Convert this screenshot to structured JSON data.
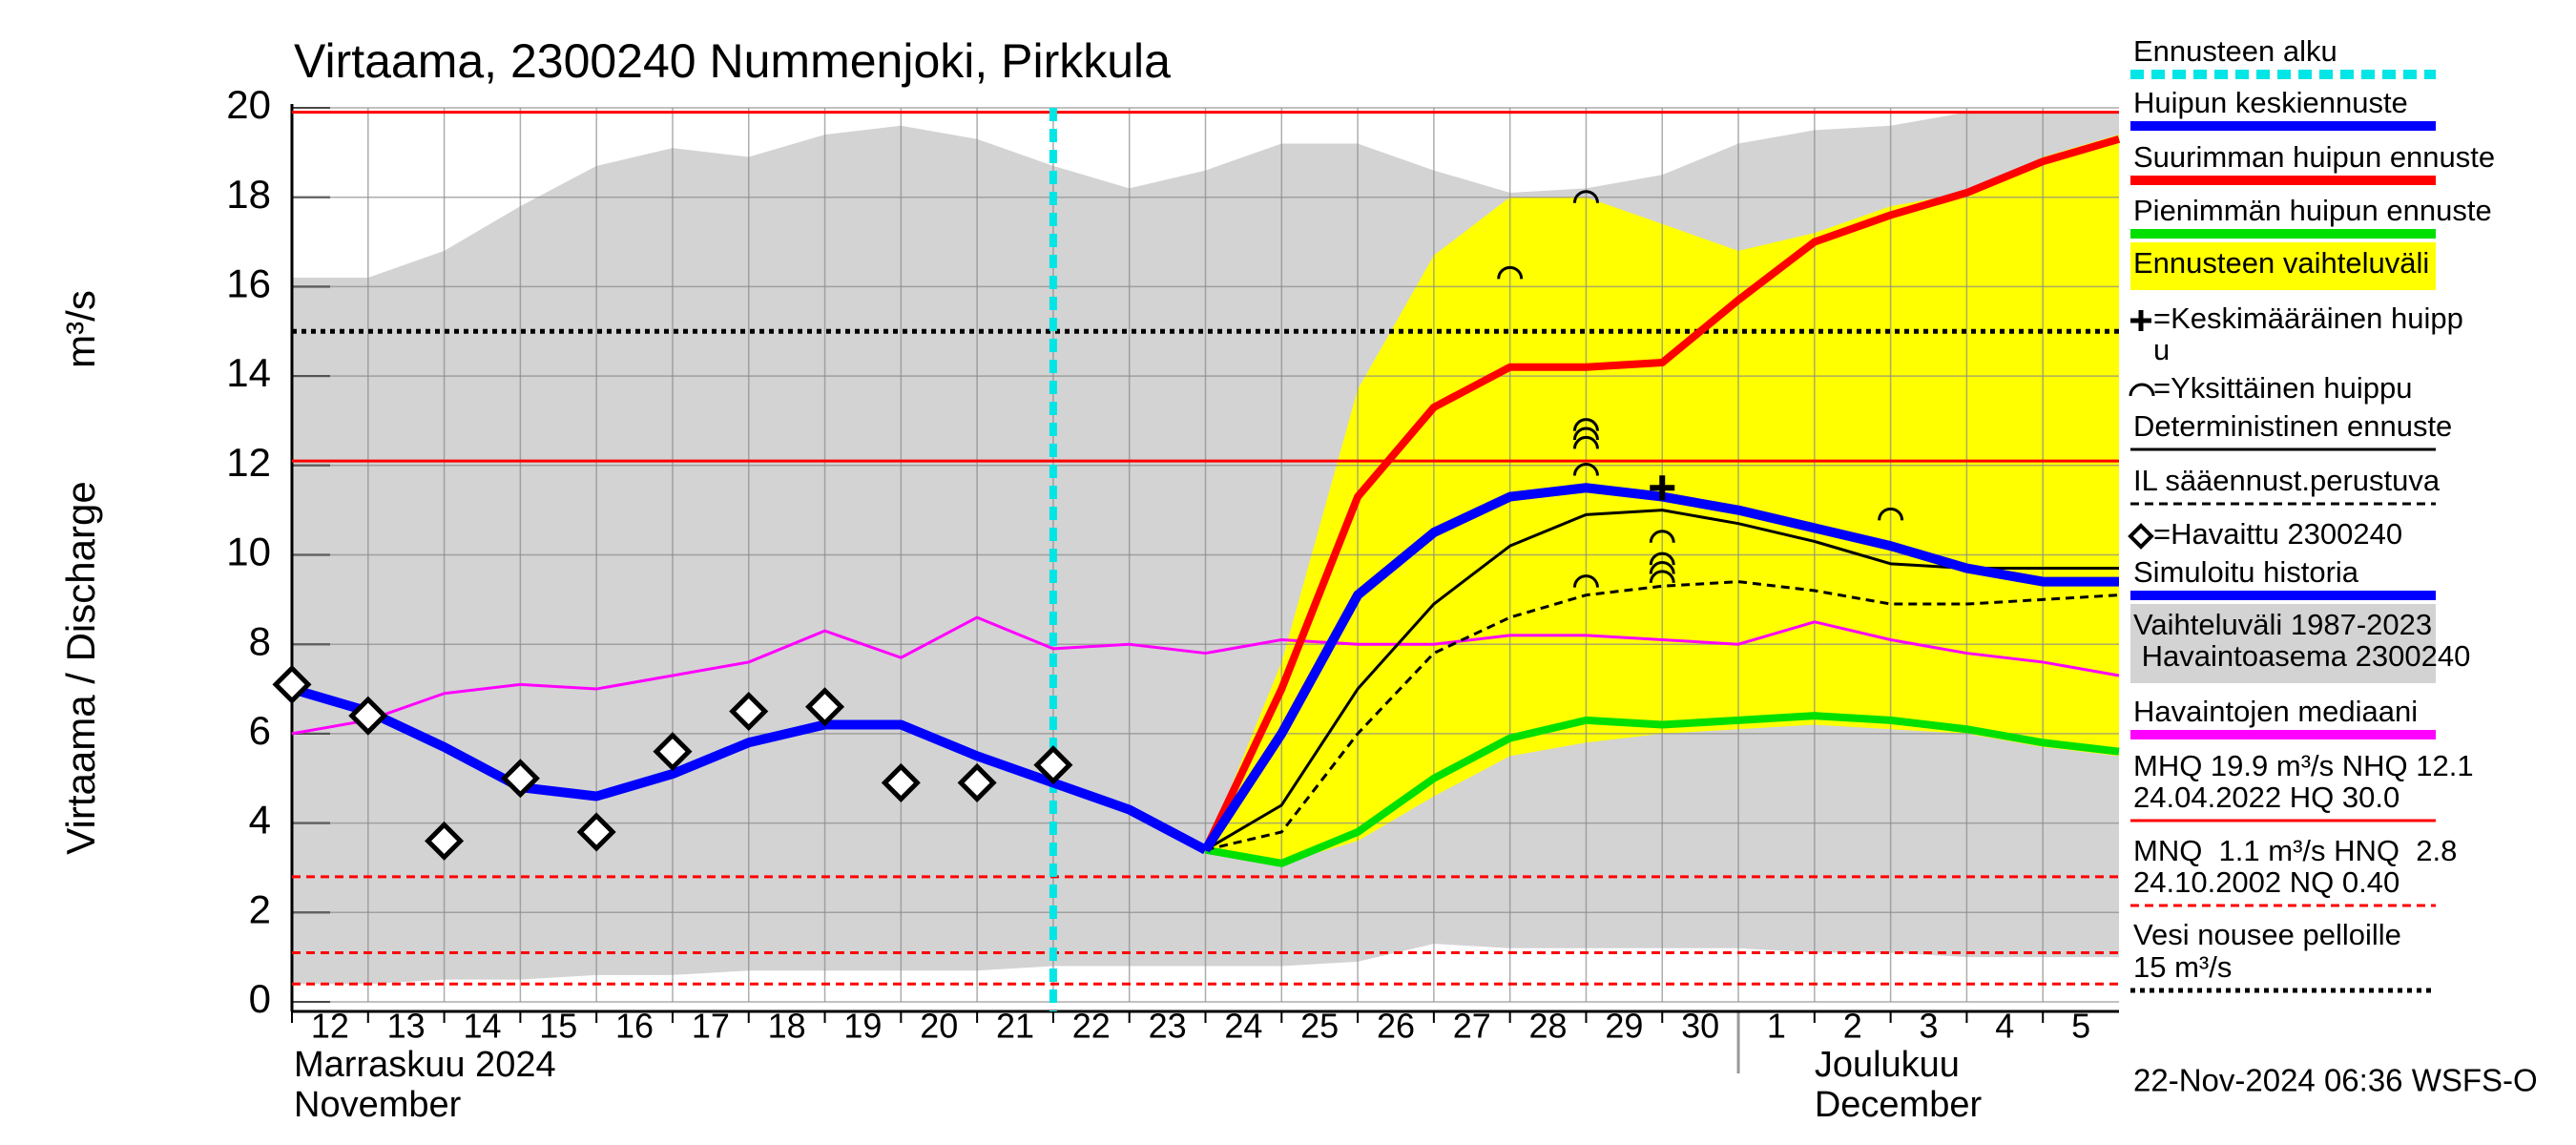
{
  "chart_data": {
    "type": "line",
    "title": "Virtaama, 2300240 Nummenjoki, Pirkkula",
    "y_label": "Virtaama / Discharge",
    "y_unit": "m³/s",
    "footer": "22-Nov-2024 06:36 WSFS-O",
    "categories": [
      "12",
      "13",
      "14",
      "15",
      "16",
      "17",
      "18",
      "19",
      "20",
      "21",
      "22",
      "23",
      "24",
      "25",
      "26",
      "27",
      "28",
      "29",
      "30",
      "1",
      "2",
      "3",
      "4",
      "5",
      null
    ],
    "months": [
      {
        "start": "12",
        "lines": [
          "Marraskuu 2024",
          "November"
        ]
      },
      {
        "start": "1",
        "lines": [
          "Joulukuu",
          "December"
        ]
      }
    ],
    "ylim": [
      0,
      20
    ],
    "yticks": [
      0,
      2,
      4,
      6,
      8,
      10,
      12,
      14,
      16,
      18,
      20
    ],
    "grid": true,
    "forecast_start": "22",
    "forecast_start_color": "#00e5e5",
    "bands": [
      {
        "color": "#d3d3d3",
        "upper": [
          16.2,
          16.2,
          16.8,
          17.8,
          18.7,
          19.1,
          18.9,
          19.4,
          19.6,
          19.3,
          18.7,
          18.2,
          18.6,
          19.2,
          19.2,
          18.6,
          18.1,
          18.2,
          18.5,
          19.2,
          19.5,
          19.6,
          19.9,
          19.9,
          19.9
        ],
        "lower": [
          0.4,
          0.4,
          0.5,
          0.5,
          0.6,
          0.6,
          0.7,
          0.7,
          0.7,
          0.7,
          0.8,
          0.8,
          0.8,
          0.8,
          0.9,
          1.3,
          1.2,
          1.2,
          1.2,
          1.2,
          1.1,
          1.1,
          1.0,
          1.0,
          1.0
        ]
      },
      {
        "color": "#ffff00",
        "upper": [
          null,
          null,
          null,
          null,
          null,
          null,
          null,
          null,
          null,
          null,
          null,
          null,
          3.4,
          7.6,
          13.7,
          16.7,
          18.0,
          18.0,
          17.4,
          16.8,
          17.2,
          17.8,
          18.1,
          18.9,
          19.4
        ],
        "lower": [
          null,
          null,
          null,
          null,
          null,
          null,
          null,
          null,
          null,
          null,
          null,
          null,
          3.4,
          3.1,
          3.6,
          4.6,
          5.5,
          5.8,
          6.0,
          6.1,
          6.2,
          6.1,
          6.0,
          5.7,
          5.5
        ]
      }
    ],
    "reference_lines": [
      {
        "value": 19.9,
        "color": "#ff0000",
        "dash": "solid"
      },
      {
        "value": 12.1,
        "color": "#ff0000",
        "dash": "solid"
      },
      {
        "value": 15,
        "color": "#000000",
        "dash": "dotted"
      },
      {
        "value": 2.8,
        "color": "#ff0000",
        "dash": "dashed"
      },
      {
        "value": 1.1,
        "color": "#ff0000",
        "dash": "dashed"
      },
      {
        "value": 0.4,
        "color": "#ff0000",
        "dash": "dashed"
      }
    ],
    "series": [
      {
        "color": "#ff00ff",
        "width": 3,
        "dash": "solid",
        "values": [
          6.0,
          6.3,
          6.9,
          7.1,
          7.0,
          7.3,
          7.6,
          8.3,
          7.7,
          8.6,
          7.9,
          8.0,
          7.8,
          8.1,
          8.0,
          8.0,
          8.2,
          8.2,
          8.1,
          8.0,
          8.5,
          8.1,
          7.8,
          7.6,
          7.3
        ]
      },
      {
        "color": "#ff0000",
        "width": 8,
        "dash": "solid",
        "values": [
          null,
          null,
          null,
          null,
          null,
          null,
          null,
          null,
          null,
          null,
          null,
          null,
          3.4,
          7.0,
          11.3,
          13.3,
          14.2,
          14.2,
          14.3,
          15.7,
          17.0,
          17.6,
          18.1,
          18.8,
          19.3
        ]
      },
      {
        "color": "#00e000",
        "width": 8,
        "dash": "solid",
        "values": [
          null,
          null,
          null,
          null,
          null,
          null,
          null,
          null,
          null,
          null,
          null,
          null,
          3.4,
          3.1,
          3.8,
          5.0,
          5.9,
          6.3,
          6.2,
          6.3,
          6.4,
          6.3,
          6.1,
          5.8,
          5.6
        ]
      },
      {
        "color": "#000000",
        "width": 3,
        "dash": "dashed",
        "values": [
          null,
          null,
          null,
          null,
          null,
          null,
          null,
          null,
          null,
          null,
          null,
          null,
          3.4,
          3.8,
          6.0,
          7.8,
          8.6,
          9.1,
          9.3,
          9.4,
          9.2,
          8.9,
          8.9,
          9.0,
          9.1
        ]
      },
      {
        "color": "#000000",
        "width": 3,
        "dash": "solid",
        "values": [
          null,
          null,
          null,
          null,
          null,
          null,
          null,
          null,
          null,
          null,
          null,
          null,
          3.4,
          4.4,
          7.0,
          8.9,
          10.2,
          10.9,
          11.0,
          10.7,
          10.3,
          9.8,
          9.7,
          9.7,
          9.7
        ]
      },
      {
        "color": "#0000ff",
        "width": 10,
        "dash": "solid",
        "values": [
          7.0,
          6.5,
          5.7,
          4.8,
          4.6,
          5.1,
          5.8,
          6.2,
          6.2,
          5.5,
          4.9,
          4.3,
          3.4,
          null,
          null,
          null,
          null,
          null,
          null,
          null,
          null,
          null,
          null,
          null,
          null
        ]
      },
      {
        "color": "#0000ff",
        "width": 10,
        "dash": "solid",
        "values": [
          null,
          null,
          null,
          null,
          null,
          null,
          null,
          null,
          null,
          null,
          null,
          null,
          3.4,
          6.0,
          9.1,
          10.5,
          11.3,
          11.5,
          11.3,
          11.0,
          10.6,
          10.2,
          9.7,
          9.4,
          9.4
        ]
      }
    ],
    "observed": {
      "color": "#000000",
      "values": [
        7.1,
        6.4,
        3.6,
        5.0,
        3.8,
        5.6,
        6.5,
        6.6,
        4.9,
        4.9,
        5.3,
        null,
        null,
        null,
        null,
        null,
        null,
        null,
        null,
        null,
        null,
        null,
        null,
        null,
        null
      ]
    },
    "individual_peaks": [
      {
        "day": "28",
        "value": 16.3
      },
      {
        "day": "29",
        "value": 18.0
      },
      {
        "day": "29",
        "value": 12.9
      },
      {
        "day": "29",
        "value": 12.7
      },
      {
        "day": "29",
        "value": 12.5
      },
      {
        "day": "29",
        "value": 11.9
      },
      {
        "day": "29",
        "value": 9.4
      },
      {
        "day": "30",
        "value": 10.4
      },
      {
        "day": "30",
        "value": 9.9
      },
      {
        "day": "30",
        "value": 9.7
      },
      {
        "day": "30",
        "value": 9.5
      },
      {
        "day": "3",
        "value": 10.9
      }
    ],
    "mean_peak": {
      "day": "30",
      "value": 11.5
    },
    "legend": [
      {
        "lines": [
          "Ennusteen alku"
        ],
        "symbol": "line",
        "color": "#00e5e5",
        "dash": "dashed"
      },
      {
        "lines": [
          "Huipun keskiennuste"
        ],
        "symbol": "line",
        "color": "#0000ff",
        "dash": "solid"
      },
      {
        "lines": [
          "Suurimman huipun ennuste"
        ],
        "symbol": "line",
        "color": "#ff0000",
        "dash": "solid"
      },
      {
        "lines": [
          "Pienimmän huipun ennuste"
        ],
        "symbol": "line",
        "color": "#00e000",
        "dash": "solid"
      },
      {
        "lines": [
          "Ennusteen vaihteluväli"
        ],
        "symbol": "block",
        "color": "#ffff00"
      },
      {
        "lines": [
          "=Keskimääräinen huipp",
          "u"
        ],
        "symbol": "plus",
        "color": "#000000"
      },
      {
        "lines": [
          "=Yksittäinen huippu"
        ],
        "symbol": "arc",
        "color": "#000000"
      },
      {
        "lines": [
          "Deterministinen ennuste"
        ],
        "symbol": "thin",
        "color": "#000000",
        "dash": "solid"
      },
      {
        "lines": [
          "IL sääennust.perustuva"
        ],
        "symbol": "thin",
        "color": "#000000",
        "dash": "dashed"
      },
      {
        "lines": [
          "=Havaittu 2300240"
        ],
        "symbol": "diamond",
        "color": "#000000"
      },
      {
        "lines": [
          "Simuloitu historia"
        ],
        "symbol": "line",
        "color": "#0000ff",
        "dash": "solid"
      },
      {
        "lines": [
          "Vaihteluväli 1987-2023",
          " Havaintoasema 2300240"
        ],
        "symbol": "block",
        "color": "#d3d3d3"
      },
      {
        "lines": [
          "Havaintojen mediaani"
        ],
        "symbol": "line",
        "color": "#ff00ff",
        "dash": "solid"
      },
      {
        "lines": [
          "MHQ 19.9 m³/s NHQ 12.1",
          "24.04.2022 HQ 30.0"
        ],
        "symbol": "thin",
        "color": "#ff0000",
        "dash": "solid"
      },
      {
        "lines": [
          "MNQ  1.1 m³/s HNQ  2.8",
          "24.10.2002 NQ 0.40"
        ],
        "symbol": "thin",
        "color": "#ff0000",
        "dash": "dashed"
      },
      {
        "lines": [
          "Vesi nousee pelloille",
          "15 m³/s"
        ],
        "symbol": "thin",
        "color": "#000000",
        "dash": "dotted"
      }
    ]
  }
}
